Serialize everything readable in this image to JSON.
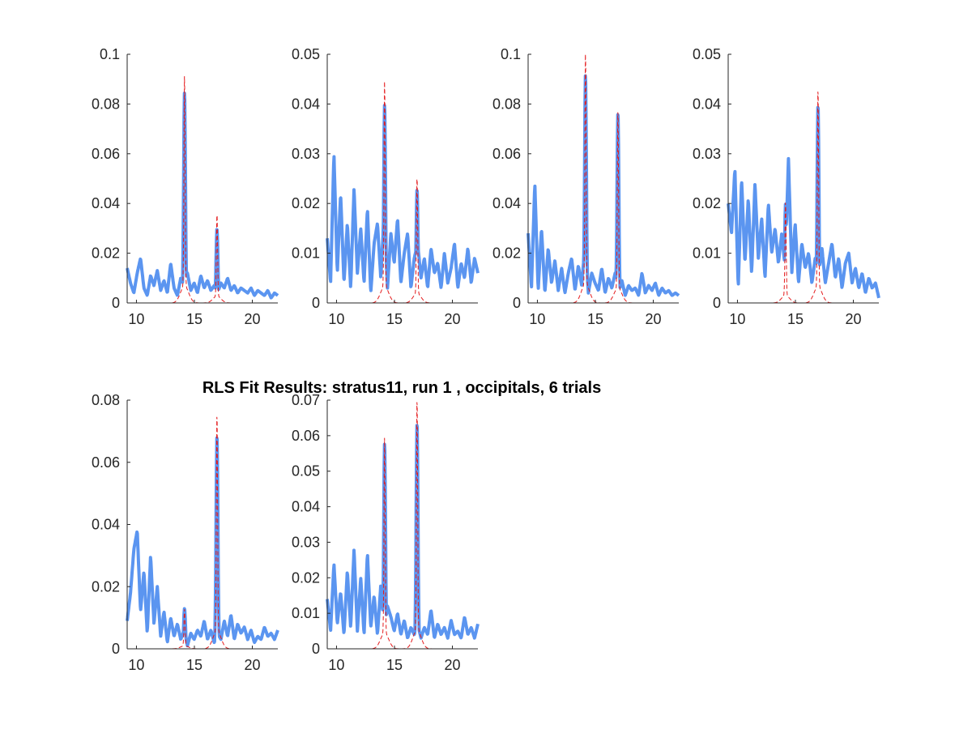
{
  "figure_title": "RLS Fit Results: stratus11, run 1 , occipitals, 6 trials",
  "colors": {
    "data_line": "#5b95f0",
    "fit_line": "#e41a1c",
    "axis": "#262626"
  },
  "chart_data": [
    {
      "type": "line",
      "xlim": [
        9.2,
        22.2
      ],
      "ylim": [
        0,
        0.1
      ],
      "x_ticks": [
        10,
        15,
        20
      ],
      "y_ticks": [
        0,
        0.02,
        0.04,
        0.06,
        0.08,
        0.1
      ],
      "x_tick_labels": [
        "10",
        "15",
        "20"
      ],
      "y_tick_labels": [
        "0",
        "0.02",
        "0.04",
        "0.06",
        "0.08",
        "0.1"
      ],
      "baseline": [
        0.014,
        0.008,
        0.004,
        0.012,
        0.018,
        0.006,
        0.003,
        0.011,
        0.007,
        0.013,
        0.005,
        0.009,
        0.004,
        0.016,
        0.006,
        0.003,
        0.01,
        0.007,
        0.012,
        0.005,
        0.008,
        0.004,
        0.011,
        0.006,
        0.009,
        0.005,
        0.007,
        0.004,
        0.008,
        0.006,
        0.01,
        0.005,
        0.007,
        0.004,
        0.006,
        0.005,
        0.004,
        0.006,
        0.003,
        0.005,
        0.004,
        0.003,
        0.005,
        0.002,
        0.004,
        0.003
      ],
      "peaks": [
        {
          "x": 14.15,
          "data": 0.085,
          "fit": 0.086,
          "width": 0.08
        },
        {
          "x": 16.95,
          "data": 0.03,
          "fit": 0.034,
          "width": 0.08
        }
      ]
    },
    {
      "type": "line",
      "xlim": [
        9.2,
        22.2
      ],
      "ylim": [
        0,
        0.05
      ],
      "x_ticks": [
        10,
        15,
        20
      ],
      "y_ticks": [
        0,
        0.01,
        0.02,
        0.03,
        0.04,
        0.05
      ],
      "x_tick_labels": [
        "10",
        "15",
        "20"
      ],
      "y_tick_labels": [
        "0",
        "0.01",
        "0.02",
        "0.03",
        "0.04",
        "0.05"
      ],
      "baseline": [
        0.013,
        0.004,
        0.03,
        0.006,
        0.022,
        0.004,
        0.016,
        0.003,
        0.023,
        0.006,
        0.015,
        0.004,
        0.019,
        0.002,
        0.012,
        0.016,
        0.005,
        0.018,
        0.003,
        0.014,
        0.008,
        0.017,
        0.004,
        0.01,
        0.014,
        0.003,
        0.009,
        0.012,
        0.005,
        0.009,
        0.003,
        0.011,
        0.006,
        0.008,
        0.003,
        0.01,
        0.004,
        0.007,
        0.012,
        0.003,
        0.008,
        0.005,
        0.011,
        0.004,
        0.009,
        0.006
      ],
      "peaks": [
        {
          "x": 14.15,
          "data": 0.04,
          "fit": 0.042,
          "width": 0.08
        },
        {
          "x": 16.95,
          "data": 0.023,
          "fit": 0.024,
          "width": 0.08
        }
      ]
    },
    {
      "type": "line",
      "xlim": [
        9.2,
        22.2
      ],
      "ylim": [
        0,
        0.1
      ],
      "x_ticks": [
        10,
        15,
        20
      ],
      "y_ticks": [
        0,
        0.02,
        0.04,
        0.06,
        0.08,
        0.1
      ],
      "x_tick_labels": [
        "10",
        "15",
        "20"
      ],
      "y_tick_labels": [
        "0",
        "0.02",
        "0.04",
        "0.06",
        "0.08",
        "0.1"
      ],
      "baseline": [
        0.028,
        0.006,
        0.048,
        0.005,
        0.03,
        0.004,
        0.022,
        0.008,
        0.017,
        0.005,
        0.014,
        0.004,
        0.012,
        0.018,
        0.005,
        0.015,
        0.007,
        0.024,
        0.004,
        0.012,
        0.008,
        0.005,
        0.014,
        0.004,
        0.01,
        0.006,
        0.012,
        0.004,
        0.009,
        0.003,
        0.007,
        0.005,
        0.006,
        0.003,
        0.012,
        0.004,
        0.007,
        0.005,
        0.008,
        0.003,
        0.006,
        0.004,
        0.005,
        0.003,
        0.004,
        0.003
      ],
      "peaks": [
        {
          "x": 14.15,
          "data": 0.092,
          "fit": 0.097,
          "width": 0.08
        },
        {
          "x": 16.95,
          "data": 0.077,
          "fit": 0.074,
          "width": 0.08
        }
      ]
    },
    {
      "type": "line",
      "xlim": [
        9.2,
        22.2
      ],
      "ylim": [
        0,
        0.05
      ],
      "x_ticks": [
        10,
        15,
        20
      ],
      "y_ticks": [
        0,
        0.01,
        0.02,
        0.03,
        0.04,
        0.05
      ],
      "x_tick_labels": [
        "10",
        "15",
        "20"
      ],
      "y_tick_labels": [
        "0",
        "0.01",
        "0.02",
        "0.03",
        "0.04",
        "0.05"
      ],
      "baseline": [
        0.02,
        0.014,
        0.027,
        0.003,
        0.025,
        0.008,
        0.021,
        0.006,
        0.024,
        0.009,
        0.017,
        0.005,
        0.02,
        0.01,
        0.015,
        0.008,
        0.014,
        0.007,
        0.029,
        0.006,
        0.016,
        0.004,
        0.012,
        0.007,
        0.01,
        0.004,
        0.009,
        0.006,
        0.011,
        0.004,
        0.008,
        0.012,
        0.005,
        0.009,
        0.003,
        0.008,
        0.01,
        0.004,
        0.007,
        0.003,
        0.006,
        0.002,
        0.005,
        0.003,
        0.004,
        0.001
      ],
      "peaks": [
        {
          "x": 14.15,
          "data": 0.02,
          "fit": 0.019,
          "width": 0.08
        },
        {
          "x": 16.95,
          "data": 0.04,
          "fit": 0.041,
          "width": 0.08
        }
      ]
    },
    {
      "type": "line",
      "xlim": [
        9.2,
        22.2
      ],
      "ylim": [
        0,
        0.08
      ],
      "x_ticks": [
        10,
        15,
        20
      ],
      "y_ticks": [
        0,
        0.02,
        0.04,
        0.06,
        0.08
      ],
      "x_tick_labels": [
        "10",
        "15",
        "20"
      ],
      "y_tick_labels": [
        "0",
        "0.02",
        "0.04",
        "0.06",
        "0.08"
      ],
      "baseline": [
        0.009,
        0.018,
        0.032,
        0.038,
        0.012,
        0.025,
        0.005,
        0.03,
        0.008,
        0.02,
        0.004,
        0.012,
        0.002,
        0.01,
        0.004,
        0.008,
        0.003,
        0.006,
        0.001,
        0.005,
        0.003,
        0.006,
        0.004,
        0.009,
        0.003,
        0.006,
        0.002,
        0.005,
        0.003,
        0.009,
        0.004,
        0.011,
        0.003,
        0.008,
        0.005,
        0.007,
        0.003,
        0.006,
        0.002,
        0.004,
        0.003,
        0.007,
        0.004,
        0.005,
        0.003,
        0.006
      ],
      "peaks": [
        {
          "x": 14.15,
          "data": 0.013,
          "fit": 0.012,
          "width": 0.08
        },
        {
          "x": 16.95,
          "data": 0.069,
          "fit": 0.072,
          "width": 0.08
        }
      ]
    },
    {
      "type": "line",
      "xlim": [
        9.2,
        22.2
      ],
      "ylim": [
        0,
        0.07
      ],
      "x_ticks": [
        10,
        15,
        20
      ],
      "y_ticks": [
        0,
        0.01,
        0.02,
        0.03,
        0.04,
        0.05,
        0.06,
        0.07
      ],
      "x_tick_labels": [
        "10",
        "15",
        "20"
      ],
      "y_tick_labels": [
        "0",
        "0.01",
        "0.02",
        "0.03",
        "0.04",
        "0.05",
        "0.06",
        "0.07"
      ],
      "baseline": [
        0.014,
        0.005,
        0.024,
        0.007,
        0.016,
        0.004,
        0.022,
        0.006,
        0.028,
        0.005,
        0.02,
        0.004,
        0.027,
        0.006,
        0.015,
        0.004,
        0.018,
        0.005,
        0.012,
        0.009,
        0.005,
        0.01,
        0.004,
        0.008,
        0.003,
        0.006,
        0.004,
        0.007,
        0.003,
        0.006,
        0.004,
        0.011,
        0.003,
        0.007,
        0.004,
        0.006,
        0.003,
        0.008,
        0.004,
        0.005,
        0.003,
        0.009,
        0.004,
        0.006,
        0.003,
        0.007
      ],
      "peaks": [
        {
          "x": 14.15,
          "data": 0.058,
          "fit": 0.056,
          "width": 0.08
        },
        {
          "x": 16.95,
          "data": 0.064,
          "fit": 0.067,
          "width": 0.08
        }
      ]
    }
  ]
}
